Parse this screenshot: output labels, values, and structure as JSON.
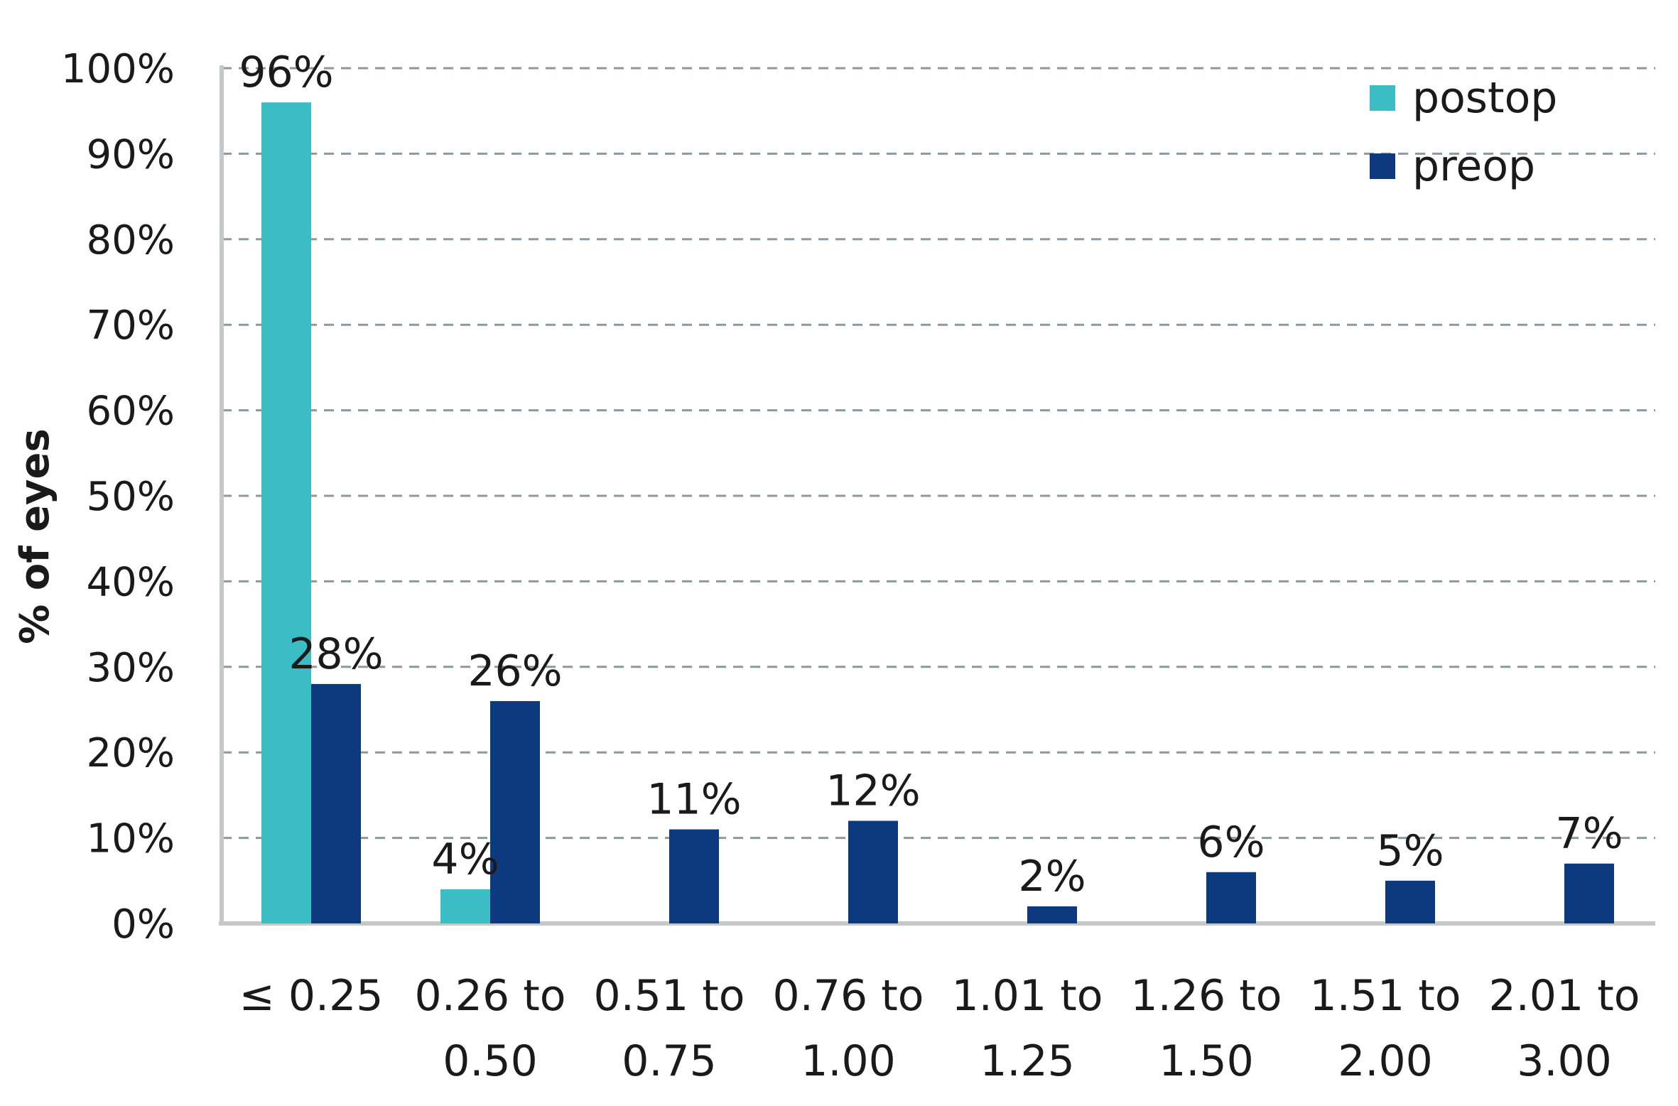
{
  "chart_data": {
    "type": "bar",
    "ylabel": "% of eyes",
    "xlabel": "",
    "ylim": [
      0,
      100
    ],
    "yticks": [
      "0%",
      "10%",
      "20%",
      "30%",
      "40%",
      "50%",
      "60%",
      "70%",
      "80%",
      "90%",
      "100%"
    ],
    "grid": true,
    "legend_position": "top-right",
    "categories": [
      [
        "≤ 0.25"
      ],
      [
        "0.26 to",
        "0.50"
      ],
      [
        "0.51 to",
        "0.75"
      ],
      [
        "0.76 to",
        "1.00"
      ],
      [
        "1.01 to",
        "1.25"
      ],
      [
        "1.26 to",
        "1.50"
      ],
      [
        "1.51 to",
        "2.00"
      ],
      [
        "2.01 to",
        "3.00"
      ]
    ],
    "series": [
      {
        "name": "postop",
        "color": "#3cbcc4",
        "values": [
          96,
          4,
          0,
          0,
          0,
          0,
          0,
          0
        ],
        "labels": [
          "96%",
          "4%",
          "",
          "",
          "",
          "",
          "",
          ""
        ]
      },
      {
        "name": "preop",
        "color": "#0d3a7e",
        "values": [
          28,
          26,
          11,
          12,
          2,
          6,
          5,
          7
        ],
        "labels": [
          "28%",
          "26%",
          "11%",
          "12%",
          "2%",
          "6%",
          "5%",
          "7%"
        ]
      }
    ]
  }
}
